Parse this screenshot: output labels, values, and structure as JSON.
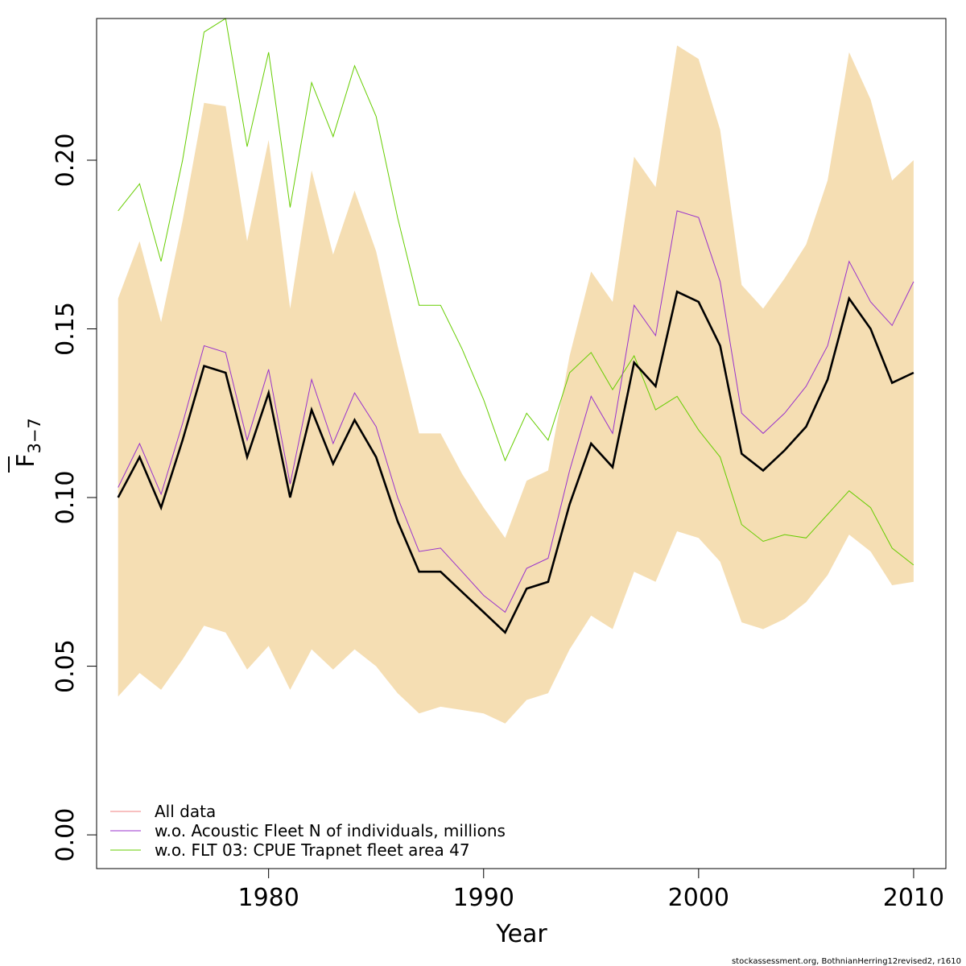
{
  "chart_data": {
    "type": "line",
    "xlabel": "Year",
    "ylabel_main": "F",
    "ylabel_sub": "3−7",
    "xlim": [
      1972,
      2011.5
    ],
    "ylim": [
      -0.01,
      0.242
    ],
    "x_ticks": [
      1980,
      1990,
      2000,
      2010
    ],
    "x_tick_labels": [
      "1980",
      "1990",
      "2000",
      "2010"
    ],
    "y_ticks": [
      0.0,
      0.05,
      0.1,
      0.15,
      0.2
    ],
    "y_tick_labels": [
      "0.00",
      "0.05",
      "0.10",
      "0.15",
      "0.20"
    ],
    "x": [
      1973,
      1974,
      1975,
      1976,
      1977,
      1978,
      1979,
      1980,
      1981,
      1982,
      1983,
      1984,
      1985,
      1986,
      1987,
      1988,
      1989,
      1990,
      1991,
      1992,
      1993,
      1994,
      1995,
      1996,
      1997,
      1998,
      1999,
      2000,
      2001,
      2002,
      2003,
      2004,
      2005,
      2006,
      2007,
      2008,
      2009,
      2010
    ],
    "band": {
      "color": "#f5deb3",
      "upper": [
        0.159,
        0.176,
        0.152,
        0.182,
        0.217,
        0.216,
        0.176,
        0.206,
        0.156,
        0.197,
        0.172,
        0.191,
        0.173,
        0.145,
        0.119,
        0.119,
        0.107,
        0.097,
        0.088,
        0.105,
        0.108,
        0.142,
        0.167,
        0.158,
        0.201,
        0.192,
        0.234,
        0.23,
        0.209,
        0.163,
        0.156,
        0.165,
        0.175,
        0.194,
        0.232,
        0.218,
        0.194,
        0.2
      ],
      "lower": [
        0.041,
        0.048,
        0.043,
        0.052,
        0.062,
        0.06,
        0.049,
        0.056,
        0.043,
        0.055,
        0.049,
        0.055,
        0.05,
        0.042,
        0.036,
        0.038,
        0.037,
        0.036,
        0.033,
        0.04,
        0.042,
        0.055,
        0.065,
        0.061,
        0.078,
        0.075,
        0.09,
        0.088,
        0.081,
        0.063,
        0.061,
        0.064,
        0.069,
        0.077,
        0.089,
        0.084,
        0.074,
        0.075
      ]
    },
    "series": [
      {
        "name": "All data",
        "color": "#000000",
        "values": [
          0.1,
          0.112,
          0.097,
          0.117,
          0.139,
          0.137,
          0.112,
          0.131,
          0.1,
          0.126,
          0.11,
          0.123,
          0.112,
          0.093,
          0.078,
          0.078,
          0.072,
          0.066,
          0.06,
          0.073,
          0.075,
          0.098,
          0.116,
          0.109,
          0.14,
          0.133,
          0.161,
          0.158,
          0.145,
          0.113,
          0.108,
          0.114,
          0.121,
          0.135,
          0.159,
          0.15,
          0.134,
          0.137
        ]
      },
      {
        "name": "w.o. Acoustic Fleet  N of individuals, millions",
        "color": "#9932cc",
        "values": [
          0.103,
          0.116,
          0.101,
          0.122,
          0.145,
          0.143,
          0.117,
          0.138,
          0.104,
          0.135,
          0.116,
          0.131,
          0.121,
          0.1,
          0.084,
          0.085,
          0.078,
          0.071,
          0.066,
          0.079,
          0.082,
          0.108,
          0.13,
          0.119,
          0.157,
          0.148,
          0.185,
          0.183,
          0.164,
          0.125,
          0.119,
          0.125,
          0.133,
          0.145,
          0.17,
          0.158,
          0.151,
          0.164
        ]
      },
      {
        "name": "w.o. FLT 03: CPUE Trapnet fleet area 47",
        "color": "#66cd00",
        "values": [
          0.185,
          0.193,
          0.17,
          0.2,
          0.238,
          0.242,
          0.204,
          0.232,
          0.186,
          0.223,
          0.207,
          0.228,
          0.213,
          0.183,
          0.157,
          0.157,
          0.144,
          0.129,
          0.111,
          0.125,
          0.117,
          0.137,
          0.143,
          0.132,
          0.142,
          0.126,
          0.13,
          0.12,
          0.112,
          0.092,
          0.087,
          0.089,
          0.088,
          0.095,
          0.102,
          0.097,
          0.085,
          0.08
        ]
      }
    ],
    "legend": {
      "placement": "bottom-left",
      "entries": [
        {
          "label": "All data",
          "color": "#f08080"
        },
        {
          "label": "w.o. Acoustic Fleet  N of individuals, millions",
          "color": "#9932cc"
        },
        {
          "label": "w.o. FLT 03: CPUE Trapnet fleet area 47",
          "color": "#66cd00"
        }
      ]
    },
    "credit": "stockassessment.org, BothnianHerring12revised2, r1610"
  }
}
